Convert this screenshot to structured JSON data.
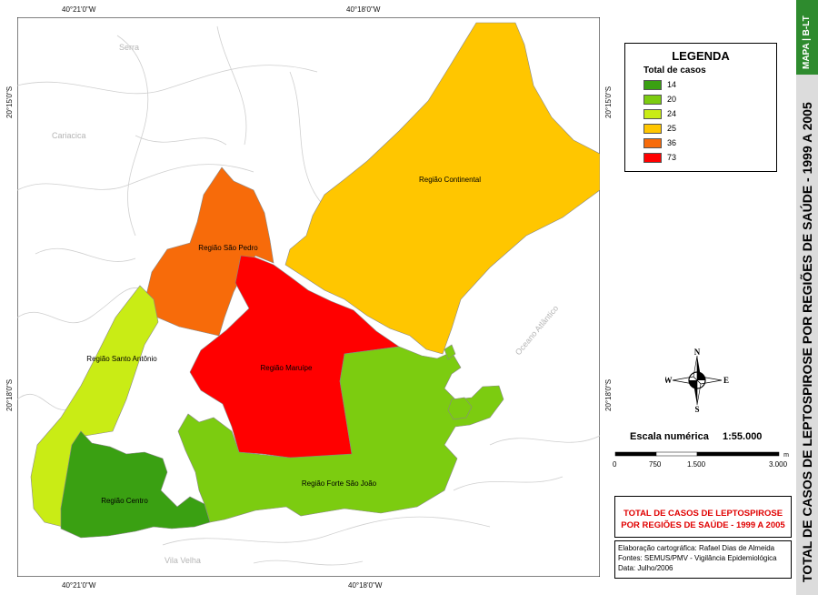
{
  "map": {
    "coords": {
      "top_left": "40°21'0\"W",
      "top_right": "40°18'0\"W",
      "bottom_left": "40°21'0\"W",
      "bottom_right": "40°18'0\"W",
      "left_upper": "20°15'0\"S",
      "left_lower": "20°18'0\"S",
      "right_upper": "20°15'0\"S",
      "right_lower": "20°18'0\"S"
    },
    "places": {
      "serra": "Serra",
      "cariacica": "Cariacica",
      "vila_velha": "Vila Velha",
      "ocean": "Oceano Atlântico"
    },
    "regions": [
      {
        "name": "Região Continental",
        "color": "#ffc600",
        "cases": 25
      },
      {
        "name": "Região São Pedro",
        "color": "#f76b0a",
        "cases": 36
      },
      {
        "name": "Região Maruípe",
        "color": "#ff0000",
        "cases": 73
      },
      {
        "name": "Região Santo Antônio",
        "color": "#c9ec15",
        "cases": 24
      },
      {
        "name": "Região Forte São João",
        "color": "#7ccc10",
        "cases": 20
      },
      {
        "name": "Região Centro",
        "color": "#3aa012",
        "cases": 14
      }
    ]
  },
  "legend": {
    "title": "LEGENDA",
    "subtitle": "Total de casos",
    "items": [
      {
        "label": "14",
        "color": "#3aa012"
      },
      {
        "label": "20",
        "color": "#7ccc10"
      },
      {
        "label": "24",
        "color": "#c9ec15"
      },
      {
        "label": "25",
        "color": "#ffc600"
      },
      {
        "label": "36",
        "color": "#f76b0a"
      },
      {
        "label": "73",
        "color": "#ff0000"
      }
    ]
  },
  "compass": {
    "n": "N",
    "s": "S",
    "e": "E",
    "w": "W"
  },
  "scale": {
    "title": "Escala numérica",
    "value": "1:55.000",
    "unit": "m",
    "ticks": [
      "0",
      "750",
      "1.500",
      "3.000"
    ]
  },
  "title_box": {
    "line1": "TOTAL DE CASOS DE LEPTOSPIROSE",
    "line2": "POR REGIÕES DE SAÚDE - 1999 A 2005"
  },
  "credits": {
    "line1": "Elaboração cartográfica: Rafael Dias de Almeida",
    "line2": "Fontes: SEMUS/PMV - Vigilância Epidemiológica",
    "line3": "Data: Julho/2006"
  },
  "side": {
    "title": "TOTAL DE CASOS DE LEPTOSPIROSE POR REGIÕES DE SAÚDE - 1999 A 2005",
    "map_code": "MAPA | B-LT"
  }
}
